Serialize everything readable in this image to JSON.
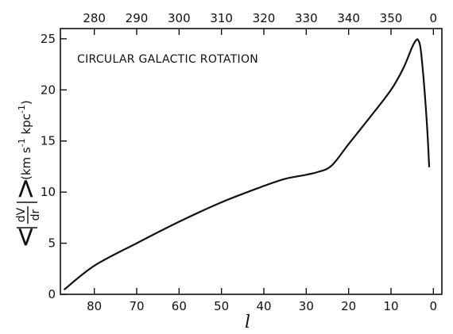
{
  "chart_data": {
    "type": "line",
    "annotation": "CIRCULAR GALACTIC ROTATION",
    "xlabel": "l",
    "ylabel": {
      "numerator": "dV",
      "denominator": "dr",
      "units_open": "(km s",
      "units_exp1": "-1",
      "units_mid": " kpc",
      "units_exp2": "-1",
      "units_close": ")"
    },
    "xlim": [
      88,
      -2
    ],
    "ylim": [
      0,
      26
    ],
    "x_ticks": [
      80,
      70,
      60,
      50,
      40,
      30,
      20,
      10,
      0
    ],
    "y_ticks": [
      0,
      5,
      10,
      15,
      20,
      25
    ],
    "top_ticks": [
      {
        "x": 80,
        "label": "280"
      },
      {
        "x": 70,
        "label": "290"
      },
      {
        "x": 60,
        "label": "300"
      },
      {
        "x": 50,
        "label": "310"
      },
      {
        "x": 40,
        "label": "320"
      },
      {
        "x": 30,
        "label": "330"
      },
      {
        "x": 20,
        "label": "340"
      },
      {
        "x": 10,
        "label": "350"
      },
      {
        "x": 0,
        "label": "0"
      }
    ],
    "x": [
      87,
      80,
      70,
      60,
      50,
      40,
      35,
      30,
      27,
      24,
      20,
      15,
      10,
      7,
      5,
      4,
      3.5,
      3,
      2.3,
      1.5,
      1
    ],
    "y": [
      0.5,
      2.8,
      5.0,
      7.1,
      9.0,
      10.6,
      11.3,
      11.7,
      12.0,
      12.6,
      14.7,
      17.3,
      20.0,
      22.2,
      24.2,
      24.9,
      24.8,
      24.0,
      21.0,
      16.5,
      12.5
    ]
  }
}
